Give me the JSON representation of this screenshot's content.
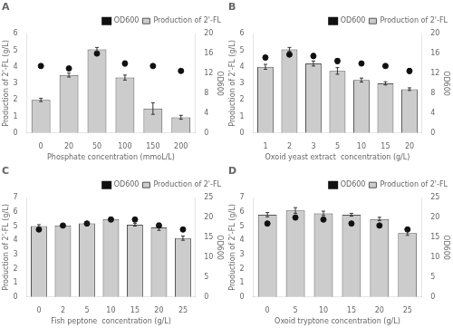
{
  "chart_data": [
    {
      "type": "bar",
      "title": "A",
      "categories": [
        "0",
        "20",
        "50",
        "100",
        "150",
        "200"
      ],
      "series": [
        {
          "name": "Production of 2'-FL",
          "type": "bar",
          "color": "#cccccc",
          "values": [
            2.0,
            3.5,
            5.05,
            3.35,
            1.48,
            0.95
          ],
          "errors": [
            0.1,
            0.12,
            0.12,
            0.15,
            0.35,
            0.12
          ]
        },
        {
          "name": "OD600",
          "type": "scatter",
          "marker": "circle",
          "color": "#111111",
          "axis": "y2",
          "values": [
            13.5,
            13.0,
            16.0,
            14.0,
            13.5,
            12.5
          ],
          "errors": [
            0.4,
            0.3,
            0.3,
            0.5,
            0.4,
            0.35
          ]
        }
      ],
      "xlabel": "Phosphate concentration (mmoL/L)",
      "ylabel": "Production of 2'-FL (g/L)",
      "y2label": "OD600",
      "ylim": [
        0,
        6
      ],
      "yticks": [
        0,
        1,
        2,
        3,
        4,
        5,
        6
      ],
      "y2lim": [
        0,
        20
      ],
      "y2ticks": [
        0,
        4,
        8,
        12,
        16,
        20
      ],
      "grid": false,
      "legend": "upper right"
    },
    {
      "type": "bar",
      "title": "B",
      "categories": [
        "1",
        "2",
        "3",
        "5",
        "10",
        "15",
        "20"
      ],
      "series": [
        {
          "name": "Production of 2'-FL",
          "type": "bar",
          "color": "#cccccc",
          "values": [
            4.0,
            5.05,
            4.2,
            3.75,
            3.2,
            3.0,
            2.65
          ],
          "errors": [
            0.15,
            0.12,
            0.15,
            0.2,
            0.12,
            0.1,
            0.08
          ]
        },
        {
          "name": "OD600",
          "type": "scatter",
          "marker": "circle",
          "color": "#111111",
          "axis": "y2",
          "values": [
            15.2,
            15.8,
            15.5,
            14.5,
            14.0,
            13.5,
            12.5
          ],
          "errors": [
            0.4,
            0.3,
            0.5,
            0.5,
            0.3,
            0.35,
            0.5
          ]
        }
      ],
      "xlabel": "Oxoid yeast extract  concentration (g/L)",
      "ylabel": "Production of 2'-FL (g/L)",
      "y2label": "OD600",
      "ylim": [
        0,
        6
      ],
      "yticks": [
        0,
        1,
        2,
        3,
        4,
        5,
        6
      ],
      "y2lim": [
        0,
        20
      ],
      "y2ticks": [
        0,
        4,
        8,
        12,
        16,
        20
      ],
      "grid": false,
      "legend": "upper right"
    },
    {
      "type": "bar",
      "title": "C",
      "categories": [
        "0",
        "2",
        "5",
        "10",
        "15",
        "20",
        "25"
      ],
      "series": [
        {
          "name": "Production of 2'-FL",
          "type": "bar",
          "color": "#cccccc",
          "values": [
            5.0,
            5.05,
            5.2,
            5.5,
            5.1,
            4.9,
            4.15
          ],
          "errors": [
            0.1,
            0.1,
            0.12,
            0.12,
            0.1,
            0.2,
            0.15
          ]
        },
        {
          "name": "OD600",
          "type": "scatter",
          "marker": "circle",
          "color": "#111111",
          "axis": "y2",
          "values": [
            17.0,
            18.0,
            18.5,
            19.5,
            19.5,
            18.0,
            17.0
          ],
          "errors": [
            0.4,
            0.3,
            0.5,
            0.5,
            0.5,
            0.6,
            0.4
          ]
        }
      ],
      "xlabel": "Fish peptone  concentration (g/L)",
      "ylabel": "Production of 2'-FL (g/L)",
      "y2label": "OD600",
      "ylim": [
        0,
        7
      ],
      "yticks": [
        0,
        1,
        2,
        3,
        4,
        5,
        6,
        7
      ],
      "y2lim": [
        0,
        25
      ],
      "y2ticks": [
        0,
        5,
        10,
        15,
        20,
        25
      ],
      "grid": false,
      "legend": "upper right"
    },
    {
      "type": "bar",
      "title": "D",
      "categories": [
        "0",
        "5",
        "10",
        "15",
        "20",
        "25"
      ],
      "series": [
        {
          "name": "Production of 2'-FL",
          "type": "bar",
          "color": "#cccccc",
          "values": [
            5.8,
            6.1,
            5.9,
            5.8,
            5.5,
            4.5
          ],
          "errors": [
            0.15,
            0.2,
            0.15,
            0.1,
            0.12,
            0.15
          ]
        },
        {
          "name": "OD600",
          "type": "scatter",
          "marker": "circle",
          "color": "#111111",
          "axis": "y2",
          "values": [
            18.5,
            20.0,
            19.5,
            18.5,
            18.0,
            17.0
          ],
          "errors": [
            0.5,
            0.5,
            0.4,
            0.3,
            0.35,
            0.4
          ]
        }
      ],
      "xlabel": "Oxoid tryptone concentration (g/L)",
      "ylabel": "Production of 2'-FL (g/L)",
      "y2label": "OD600",
      "ylim": [
        0,
        7
      ],
      "yticks": [
        0,
        1,
        2,
        3,
        4,
        5,
        6,
        7
      ],
      "y2lim": [
        0,
        25
      ],
      "y2ticks": [
        0,
        5,
        10,
        15,
        20,
        25
      ],
      "grid": false,
      "legend": "upper right"
    }
  ]
}
